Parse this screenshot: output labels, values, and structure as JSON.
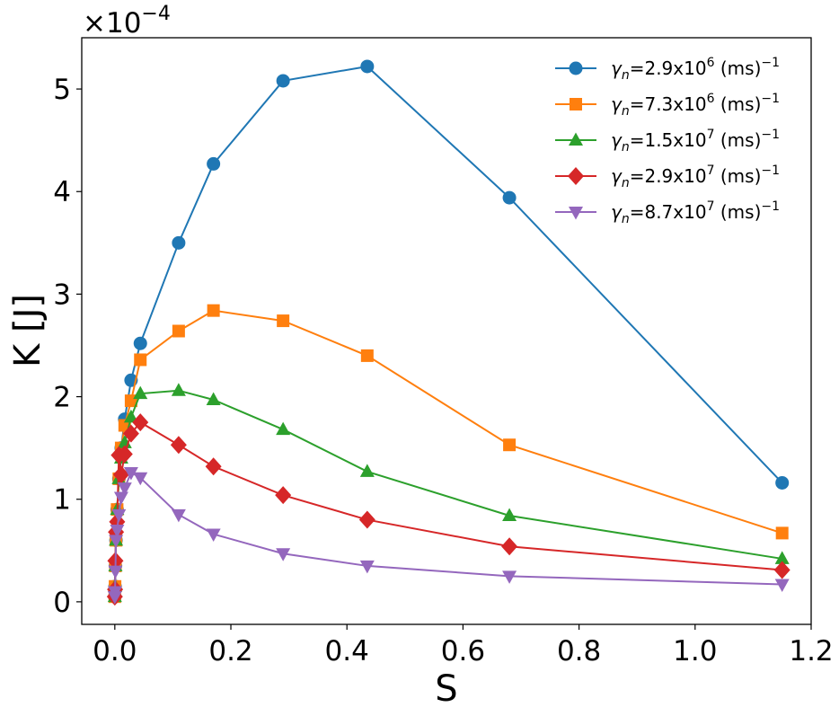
{
  "chart_data": {
    "type": "line",
    "xlabel": "S",
    "ylabel": "K [J]",
    "y_scale_factor": "×10",
    "y_scale_exponent": "−4",
    "xlim": [
      -0.057,
      1.2
    ],
    "ylim": [
      -0.22,
      5.5
    ],
    "x_ticks": [
      0.0,
      0.2,
      0.4,
      0.6,
      0.8,
      1.0,
      1.2
    ],
    "x_tick_labels": [
      "0.0",
      "0.2",
      "0.4",
      "0.6",
      "0.8",
      "1.0",
      "1.2"
    ],
    "y_ticks": [
      0,
      1,
      2,
      3,
      4,
      5
    ],
    "y_tick_labels": [
      "0",
      "1",
      "2",
      "3",
      "4",
      "5"
    ],
    "grid": false,
    "legend_position": "top-right",
    "series": [
      {
        "name": "γn=2.9x10^6 (ms)^-1",
        "label_base": "=2.9x10",
        "label_exp": "6",
        "color": "#1f77b4",
        "marker": "circle",
        "x": [
          0.0,
          0.0004,
          0.001,
          0.002,
          0.004,
          0.007,
          0.011,
          0.017,
          0.028,
          0.044,
          0.11,
          0.17,
          0.29,
          0.435,
          0.68,
          1.15
        ],
        "y": [
          0.05,
          0.15,
          0.35,
          0.6,
          0.9,
          1.2,
          1.5,
          1.78,
          2.16,
          2.52,
          3.5,
          4.27,
          5.08,
          5.22,
          3.94,
          1.16
        ]
      },
      {
        "name": "γn=7.3x10^6 (ms)^-1",
        "label_base": "=7.3x10",
        "label_exp": "6",
        "color": "#ff7f0e",
        "marker": "square",
        "x": [
          0.0,
          0.0004,
          0.001,
          0.002,
          0.004,
          0.007,
          0.011,
          0.017,
          0.028,
          0.044,
          0.11,
          0.17,
          0.29,
          0.435,
          0.68,
          1.15
        ],
        "y": [
          0.05,
          0.15,
          0.35,
          0.6,
          0.9,
          1.2,
          1.5,
          1.72,
          1.96,
          2.36,
          2.64,
          2.84,
          2.74,
          2.4,
          1.53,
          0.67
        ]
      },
      {
        "name": "γn=1.5x10^7 (ms)^-1",
        "label_base": "=1.5x10",
        "label_exp": "7",
        "color": "#2ca02c",
        "marker": "triangle-up",
        "x": [
          0.0,
          0.0004,
          0.001,
          0.002,
          0.004,
          0.007,
          0.011,
          0.017,
          0.028,
          0.044,
          0.11,
          0.17,
          0.29,
          0.435,
          0.68,
          1.15
        ],
        "y": [
          0.05,
          0.15,
          0.35,
          0.6,
          0.9,
          1.2,
          1.4,
          1.55,
          1.8,
          2.03,
          2.06,
          1.97,
          1.68,
          1.27,
          0.84,
          0.42
        ]
      },
      {
        "name": "γn=2.9x10^7 (ms)^-1",
        "label_base": "=2.9x10",
        "label_exp": "7",
        "color": "#d62728",
        "marker": "diamond",
        "x": [
          0.0,
          0.0004,
          0.001,
          0.002,
          0.004,
          0.007,
          0.011,
          0.017,
          0.028,
          0.044,
          0.11,
          0.17,
          0.29,
          0.435,
          0.68,
          1.15
        ],
        "y": [
          0.05,
          0.12,
          0.4,
          0.68,
          0.78,
          1.43,
          1.24,
          1.44,
          1.64,
          1.75,
          1.53,
          1.32,
          1.04,
          0.8,
          0.54,
          0.31
        ]
      },
      {
        "name": "γn=8.7x10^7 (ms)^-1",
        "label_base": "=8.7x10",
        "label_exp": "7",
        "color": "#9467bd",
        "marker": "triangle-down",
        "x": [
          0.0,
          0.0004,
          0.001,
          0.002,
          0.004,
          0.007,
          0.011,
          0.017,
          0.028,
          0.044,
          0.11,
          0.17,
          0.29,
          0.435,
          0.68,
          1.15
        ],
        "y": [
          0.05,
          0.1,
          0.3,
          0.6,
          0.7,
          0.85,
          1.02,
          1.11,
          1.26,
          1.21,
          0.85,
          0.66,
          0.47,
          0.35,
          0.25,
          0.17
        ]
      }
    ]
  }
}
